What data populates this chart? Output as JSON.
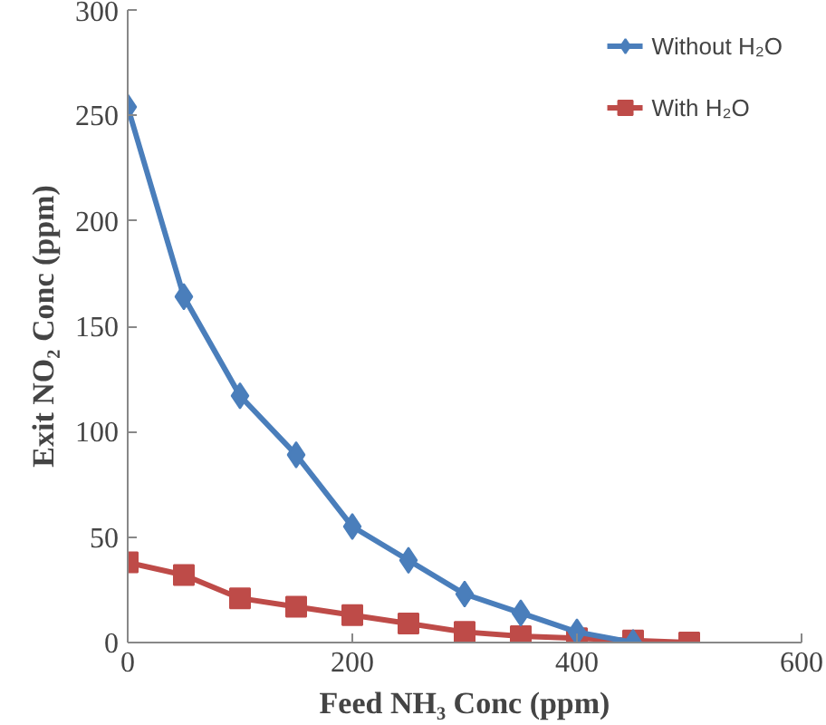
{
  "chart_data": {
    "type": "line",
    "xlabel": "Feed NH₃ Conc (ppm)",
    "ylabel": "Exit NO₂ Conc (ppm)",
    "x": [
      0,
      50,
      100,
      150,
      200,
      250,
      300,
      350,
      400,
      450,
      500
    ],
    "series": [
      {
        "name": "Without H₂O",
        "color": "#4a7ebb",
        "marker": "diamond",
        "x": [
          0,
          50,
          100,
          150,
          200,
          250,
          300,
          350,
          400,
          450
        ],
        "values": [
          254,
          164,
          117,
          89,
          55,
          39,
          23,
          14,
          5,
          0
        ]
      },
      {
        "name": "With H₂O",
        "color": "#be4b48",
        "marker": "square",
        "values": [
          38,
          32,
          21,
          17,
          13,
          9,
          5,
          3,
          2,
          1,
          0
        ]
      }
    ],
    "xlim": [
      0,
      600
    ],
    "xticks": [
      0,
      200,
      400,
      600
    ],
    "ylim": [
      0,
      300
    ],
    "yticks": [
      0,
      50,
      100,
      150,
      200,
      250,
      300
    ],
    "grid": false,
    "legend": "top right",
    "line_style": "solid"
  }
}
